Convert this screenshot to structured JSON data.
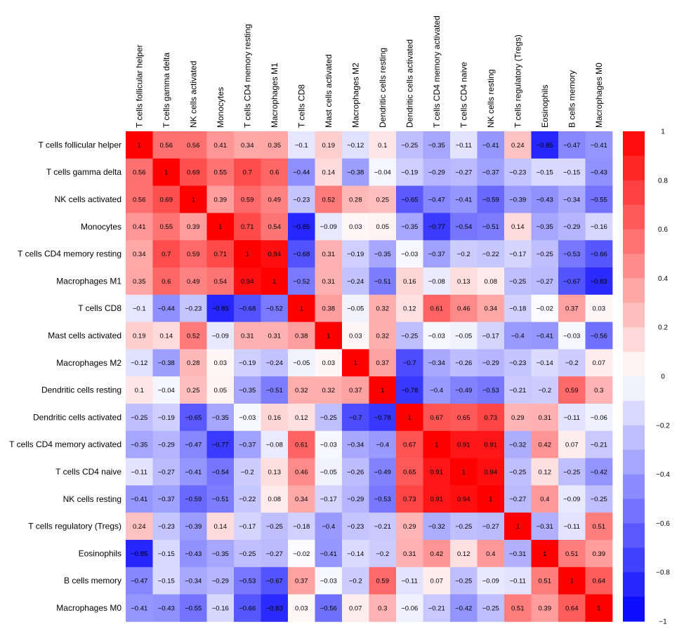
{
  "chart_data": {
    "type": "heatmap",
    "title": "",
    "xlabel": "",
    "ylabel": "",
    "labels": [
      "T cells follicular helper",
      "T cells gamma delta",
      "NK cells activated",
      "Monocytes",
      "T cells CD4 memory resting",
      "Macrophages M1",
      "T cells CD8",
      "Mast cells activated",
      "Macrophages M2",
      "Dendritic cells resting",
      "Dendritic cells activated",
      "T cells CD4 memory activated",
      "T cells CD4 naive",
      "NK cells resting",
      "T cells regulatory (Tregs)",
      "Eosinophils",
      "B cells memory",
      "Macrophages M0"
    ],
    "matrix": [
      [
        1,
        0.56,
        0.56,
        0.41,
        0.34,
        0.35,
        -0.1,
        0.19,
        -0.12,
        0.1,
        -0.25,
        -0.35,
        -0.11,
        -0.41,
        0.24,
        -0.85,
        -0.47,
        -0.41
      ],
      [
        0.56,
        1,
        0.69,
        0.55,
        0.7,
        0.6,
        -0.44,
        0.14,
        -0.38,
        -0.04,
        -0.19,
        -0.29,
        -0.27,
        -0.37,
        -0.23,
        -0.15,
        -0.15,
        -0.43
      ],
      [
        0.56,
        0.69,
        1,
        0.39,
        0.59,
        0.49,
        -0.23,
        0.52,
        0.28,
        0.25,
        -0.65,
        -0.47,
        -0.41,
        -0.59,
        -0.39,
        -0.43,
        -0.34,
        -0.55
      ],
      [
        0.41,
        0.55,
        0.39,
        1,
        0.71,
        0.54,
        -0.85,
        -0.09,
        0.03,
        0.05,
        -0.35,
        -0.77,
        -0.54,
        -0.51,
        0.14,
        -0.35,
        -0.29,
        -0.16
      ],
      [
        0.34,
        0.7,
        0.59,
        0.71,
        1,
        0.94,
        -0.68,
        0.31,
        -0.19,
        -0.35,
        -0.03,
        -0.37,
        -0.2,
        -0.22,
        -0.17,
        -0.25,
        -0.53,
        -0.66
      ],
      [
        0.35,
        0.6,
        0.49,
        0.54,
        0.94,
        1,
        -0.52,
        0.31,
        -0.24,
        -0.51,
        0.16,
        -0.08,
        0.13,
        0.08,
        -0.25,
        -0.27,
        -0.67,
        -0.83
      ],
      [
        -0.1,
        -0.44,
        -0.23,
        -0.85,
        -0.68,
        -0.52,
        1,
        0.38,
        -0.05,
        0.32,
        0.12,
        0.61,
        0.46,
        0.34,
        -0.18,
        -0.02,
        0.37,
        0.03
      ],
      [
        0.19,
        0.14,
        0.52,
        -0.09,
        0.31,
        0.31,
        0.38,
        1,
        0.03,
        0.32,
        -0.25,
        -0.03,
        -0.05,
        -0.17,
        -0.4,
        -0.41,
        -0.03,
        -0.56
      ],
      [
        -0.12,
        -0.38,
        0.28,
        0.03,
        -0.19,
        -0.24,
        -0.05,
        0.03,
        1,
        0.37,
        -0.7,
        -0.34,
        -0.26,
        -0.29,
        -0.23,
        -0.14,
        -0.2,
        0.07
      ],
      [
        0.1,
        -0.04,
        0.25,
        0.05,
        -0.35,
        -0.51,
        0.32,
        0.32,
        0.37,
        1,
        -0.78,
        -0.4,
        -0.49,
        -0.53,
        -0.21,
        -0.2,
        0.59,
        0.3
      ],
      [
        -0.25,
        -0.19,
        -0.65,
        -0.35,
        -0.03,
        0.16,
        0.12,
        -0.25,
        -0.7,
        -0.78,
        1,
        0.67,
        0.65,
        0.73,
        0.29,
        0.31,
        -0.11,
        -0.06
      ],
      [
        -0.35,
        -0.29,
        -0.47,
        -0.77,
        -0.37,
        -0.08,
        0.61,
        -0.03,
        -0.34,
        -0.4,
        0.67,
        1,
        0.91,
        0.91,
        -0.32,
        0.42,
        0.07,
        -0.21
      ],
      [
        -0.11,
        -0.27,
        -0.41,
        -0.54,
        -0.2,
        0.13,
        0.46,
        -0.05,
        -0.26,
        -0.49,
        0.65,
        0.91,
        1,
        0.94,
        -0.25,
        0.12,
        -0.25,
        -0.42
      ],
      [
        -0.41,
        -0.37,
        -0.59,
        -0.51,
        -0.22,
        0.08,
        0.34,
        -0.17,
        -0.29,
        -0.53,
        0.73,
        0.91,
        0.94,
        1,
        -0.27,
        0.4,
        -0.09,
        -0.25
      ],
      [
        0.24,
        -0.23,
        -0.39,
        0.14,
        -0.17,
        -0.25,
        -0.18,
        -0.4,
        -0.23,
        -0.21,
        0.29,
        -0.32,
        -0.25,
        -0.27,
        1,
        -0.31,
        -0.11,
        0.51
      ],
      [
        -0.85,
        -0.15,
        -0.43,
        -0.35,
        -0.25,
        -0.27,
        -0.02,
        -0.41,
        -0.14,
        -0.2,
        0.31,
        0.42,
        0.12,
        0.4,
        -0.31,
        1,
        0.51,
        0.39
      ],
      [
        -0.47,
        -0.15,
        -0.34,
        -0.29,
        -0.53,
        -0.67,
        0.37,
        -0.03,
        -0.2,
        0.59,
        -0.11,
        0.07,
        -0.25,
        -0.09,
        -0.11,
        0.51,
        1,
        0.64
      ],
      [
        -0.41,
        -0.43,
        -0.55,
        -0.16,
        -0.66,
        -0.83,
        0.03,
        -0.56,
        0.07,
        0.3,
        -0.06,
        -0.21,
        -0.42,
        -0.25,
        0.51,
        0.39,
        0.64,
        1
      ]
    ],
    "value_range": [
      -1,
      1
    ],
    "colorbar": {
      "ticks": [
        1,
        0.8,
        0.6,
        0.4,
        0.2,
        0,
        -0.2,
        -0.4,
        -0.6,
        -0.8,
        -1
      ],
      "tick_labels": [
        "1",
        "0.8",
        "0.6",
        "0.4",
        "0.2",
        "0",
        "−0.2",
        "−0.4",
        "−0.6",
        "−0.8",
        "−1"
      ],
      "steps": 20,
      "placement": "right"
    },
    "colors": {
      "negative": "#0000FF",
      "zero": "#FFFFFF",
      "positive": "#FF0000"
    },
    "grid": false,
    "legend": "right"
  }
}
